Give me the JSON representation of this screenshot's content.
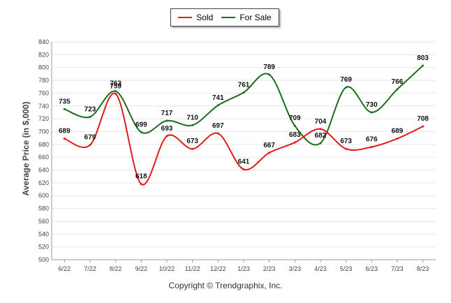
{
  "chart_data": {
    "type": "line",
    "title": "",
    "xlabel": "",
    "ylabel": "Average Price (in $,000)",
    "categories": [
      "6/22",
      "7/22",
      "8/22",
      "9/22",
      "10/22",
      "11/22",
      "12/22",
      "1/23",
      "2/23",
      "3/23",
      "4/23",
      "5/23",
      "6/23",
      "7/23",
      "8/23"
    ],
    "ylim": [
      500,
      840
    ],
    "yticks": [
      500,
      520,
      540,
      560,
      580,
      600,
      620,
      640,
      660,
      680,
      700,
      720,
      740,
      760,
      780,
      800,
      820,
      840
    ],
    "grid": true,
    "legend_position": "top-center",
    "series": [
      {
        "name": "Sold",
        "color": "#e31a1c",
        "values": [
          689,
          679,
          759,
          618,
          693,
          673,
          697,
          641,
          667,
          683,
          704,
          673,
          676,
          689,
          708
        ]
      },
      {
        "name": "For Sale",
        "color": "#1a6e1a",
        "values": [
          735,
          723,
          763,
          699,
          717,
          710,
          741,
          761,
          789,
          709,
          682,
          769,
          730,
          766,
          803
        ]
      }
    ]
  },
  "legend": {
    "sold_label": "Sold",
    "for_sale_label": "For Sale"
  },
  "copyright": "Copyright © Trendgraphix, Inc."
}
